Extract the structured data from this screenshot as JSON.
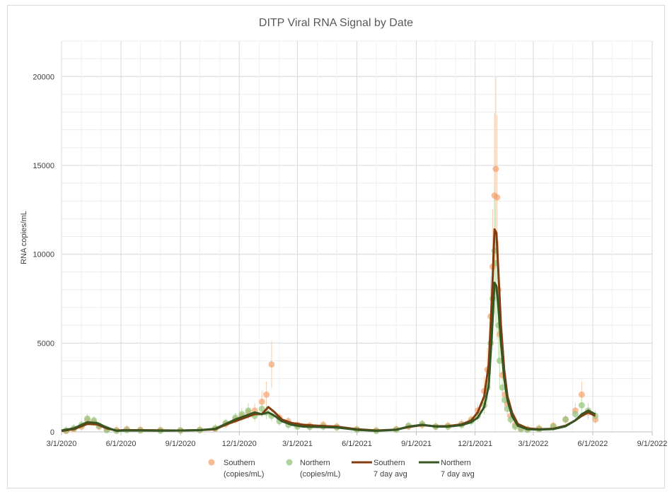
{
  "chart_data": {
    "type": "scatter",
    "title": "DITP Viral RNA Signal by Date",
    "xlabel": "",
    "ylabel": "RNA copies/mL",
    "ylim": [
      0,
      22000
    ],
    "yticks": [
      0,
      5000,
      10000,
      15000,
      20000
    ],
    "xlim": [
      "2020-03-01",
      "2022-09-01"
    ],
    "xticks": [
      "3/1/2020",
      "6/1/2020",
      "9/1/2020",
      "12/1/2020",
      "3/1/2021",
      "6/1/2021",
      "9/1/2021",
      "12/1/2021",
      "3/1/2022",
      "6/1/2022",
      "9/1/2022"
    ],
    "grid": true,
    "legend_position": "bottom",
    "colors": {
      "southern_points": "#f4a46f",
      "northern_points": "#93c47d",
      "southern_avg": "#843c0c",
      "northern_avg": "#375623",
      "grid": "#d9d9d9",
      "error_southern": "#f8cbad",
      "error_northern": "#c5e0b4"
    },
    "series": [
      {
        "name": "Southern (copies/mL)",
        "kind": "points",
        "x": [
          "2020-03-08",
          "2020-03-20",
          "2020-04-01",
          "2020-04-10",
          "2020-04-20",
          "2020-04-28",
          "2020-05-10",
          "2020-05-25",
          "2020-06-10",
          "2020-07-01",
          "2020-08-01",
          "2020-09-01",
          "2020-10-01",
          "2020-10-25",
          "2020-11-10",
          "2020-11-25",
          "2020-12-05",
          "2020-12-15",
          "2020-12-25",
          "2021-01-05",
          "2021-01-12",
          "2021-01-20",
          "2021-02-01",
          "2021-02-15",
          "2021-03-01",
          "2021-03-20",
          "2021-04-10",
          "2021-05-01",
          "2021-06-01",
          "2021-07-01",
          "2021-08-01",
          "2021-08-20",
          "2021-09-10",
          "2021-10-01",
          "2021-10-20",
          "2021-11-10",
          "2021-11-25",
          "2021-12-05",
          "2021-12-15",
          "2021-12-20",
          "2021-12-25",
          "2021-12-28",
          "2021-12-31",
          "2022-01-02",
          "2022-01-04",
          "2022-01-06",
          "2022-01-08",
          "2022-01-12",
          "2022-01-16",
          "2022-01-20",
          "2022-01-25",
          "2022-02-01",
          "2022-02-10",
          "2022-02-20",
          "2022-03-10",
          "2022-04-01",
          "2022-04-20",
          "2022-05-05",
          "2022-05-15",
          "2022-05-25",
          "2022-06-05"
        ],
        "values": [
          50,
          150,
          300,
          650,
          550,
          300,
          150,
          100,
          150,
          120,
          100,
          90,
          120,
          180,
          450,
          700,
          900,
          1100,
          1200,
          1700,
          2100,
          3800,
          800,
          600,
          400,
          350,
          400,
          300,
          150,
          80,
          150,
          300,
          400,
          300,
          350,
          450,
          700,
          1200,
          2300,
          3500,
          6500,
          9300,
          13300,
          14800,
          13200,
          8000,
          5500,
          3200,
          2100,
          1600,
          900,
          400,
          200,
          150,
          200,
          350,
          700,
          1200,
          2100,
          1100,
          700
        ]
      },
      {
        "name": "Northern (copies/mL)",
        "kind": "points",
        "x": [
          "2020-03-08",
          "2020-03-20",
          "2020-04-01",
          "2020-04-10",
          "2020-04-20",
          "2020-04-28",
          "2020-05-10",
          "2020-05-25",
          "2020-06-10",
          "2020-07-01",
          "2020-08-01",
          "2020-09-01",
          "2020-10-01",
          "2020-10-25",
          "2020-11-10",
          "2020-11-25",
          "2020-12-05",
          "2020-12-15",
          "2020-12-25",
          "2021-01-05",
          "2021-01-12",
          "2021-01-20",
          "2021-02-01",
          "2021-02-15",
          "2021-03-01",
          "2021-03-20",
          "2021-04-10",
          "2021-05-01",
          "2021-06-01",
          "2021-07-01",
          "2021-08-01",
          "2021-08-20",
          "2021-09-10",
          "2021-10-01",
          "2021-10-20",
          "2021-11-10",
          "2021-11-25",
          "2021-12-05",
          "2021-12-15",
          "2021-12-20",
          "2021-12-25",
          "2021-12-28",
          "2021-12-31",
          "2022-01-02",
          "2022-01-04",
          "2022-01-06",
          "2022-01-08",
          "2022-01-12",
          "2022-01-16",
          "2022-01-20",
          "2022-01-25",
          "2022-02-01",
          "2022-02-10",
          "2022-02-20",
          "2022-03-10",
          "2022-04-01",
          "2022-04-20",
          "2022-05-05",
          "2022-05-15",
          "2022-05-25",
          "2022-06-05"
        ],
        "values": [
          80,
          200,
          400,
          750,
          650,
          350,
          100,
          60,
          100,
          80,
          70,
          80,
          100,
          200,
          500,
          800,
          1000,
          1200,
          900,
          1300,
          1100,
          900,
          600,
          400,
          300,
          280,
          300,
          250,
          120,
          60,
          120,
          350,
          450,
          300,
          300,
          400,
          600,
          900,
          1500,
          2500,
          5000,
          7500,
          10200,
          9500,
          8000,
          6000,
          4000,
          2500,
          1800,
          1300,
          700,
          300,
          150,
          120,
          150,
          300,
          700,
          1000,
          1500,
          1200,
          900
        ]
      },
      {
        "name": "Southern 7 day avg",
        "kind": "line",
        "x": [
          "2020-03-01",
          "2020-03-20",
          "2020-04-10",
          "2020-04-25",
          "2020-05-10",
          "2020-05-25",
          "2020-06-05",
          "2020-07-01",
          "2020-08-01",
          "2020-09-01",
          "2020-10-01",
          "2020-10-25",
          "2020-11-10",
          "2020-11-25",
          "2020-12-10",
          "2020-12-25",
          "2021-01-05",
          "2021-01-15",
          "2021-01-25",
          "2021-02-05",
          "2021-02-20",
          "2021-03-10",
          "2021-04-01",
          "2021-05-01",
          "2021-06-01",
          "2021-07-01",
          "2021-08-01",
          "2021-08-20",
          "2021-09-10",
          "2021-10-01",
          "2021-10-20",
          "2021-11-10",
          "2021-11-25",
          "2021-12-05",
          "2021-12-15",
          "2021-12-22",
          "2021-12-27",
          "2021-12-31",
          "2022-01-03",
          "2022-01-06",
          "2022-01-10",
          "2022-01-15",
          "2022-01-20",
          "2022-01-27",
          "2022-02-05",
          "2022-02-20",
          "2022-03-10",
          "2022-04-01",
          "2022-04-20",
          "2022-05-05",
          "2022-05-15",
          "2022-05-25",
          "2022-06-05"
        ],
        "values": [
          50,
          150,
          450,
          420,
          200,
          80,
          100,
          100,
          90,
          80,
          100,
          150,
          400,
          600,
          800,
          1000,
          1000,
          1400,
          1100,
          700,
          500,
          400,
          350,
          300,
          150,
          80,
          130,
          280,
          380,
          320,
          330,
          420,
          650,
          1100,
          2000,
          3800,
          7500,
          11400,
          11200,
          9000,
          6000,
          3500,
          2000,
          1100,
          450,
          200,
          150,
          180,
          350,
          650,
          900,
          1100,
          900
        ]
      },
      {
        "name": "Northern 7 day avg",
        "kind": "line",
        "x": [
          "2020-03-01",
          "2020-03-20",
          "2020-04-10",
          "2020-04-25",
          "2020-05-10",
          "2020-05-25",
          "2020-06-05",
          "2020-07-01",
          "2020-08-01",
          "2020-09-01",
          "2020-10-01",
          "2020-10-25",
          "2020-11-10",
          "2020-11-25",
          "2020-12-10",
          "2020-12-25",
          "2021-01-05",
          "2021-01-15",
          "2021-01-25",
          "2021-02-05",
          "2021-02-20",
          "2021-03-10",
          "2021-04-01",
          "2021-05-01",
          "2021-06-01",
          "2021-07-01",
          "2021-08-01",
          "2021-08-20",
          "2021-09-10",
          "2021-10-01",
          "2021-10-20",
          "2021-11-10",
          "2021-11-25",
          "2021-12-05",
          "2021-12-15",
          "2021-12-22",
          "2021-12-27",
          "2021-12-31",
          "2022-01-03",
          "2022-01-06",
          "2022-01-10",
          "2022-01-15",
          "2022-01-20",
          "2022-01-27",
          "2022-02-05",
          "2022-02-20",
          "2022-03-10",
          "2022-04-01",
          "2022-04-20",
          "2022-05-05",
          "2022-05-15",
          "2022-05-25",
          "2022-06-05"
        ],
        "values": [
          80,
          200,
          550,
          500,
          250,
          60,
          80,
          80,
          70,
          80,
          100,
          180,
          450,
          700,
          900,
          1100,
          1000,
          1100,
          900,
          600,
          400,
          300,
          280,
          250,
          120,
          60,
          120,
          300,
          400,
          300,
          300,
          380,
          550,
          800,
          1400,
          2600,
          5500,
          8400,
          8200,
          7000,
          5000,
          3000,
          1800,
          900,
          350,
          150,
          130,
          160,
          320,
          650,
          1000,
          1200,
          1000
        ]
      }
    ]
  }
}
